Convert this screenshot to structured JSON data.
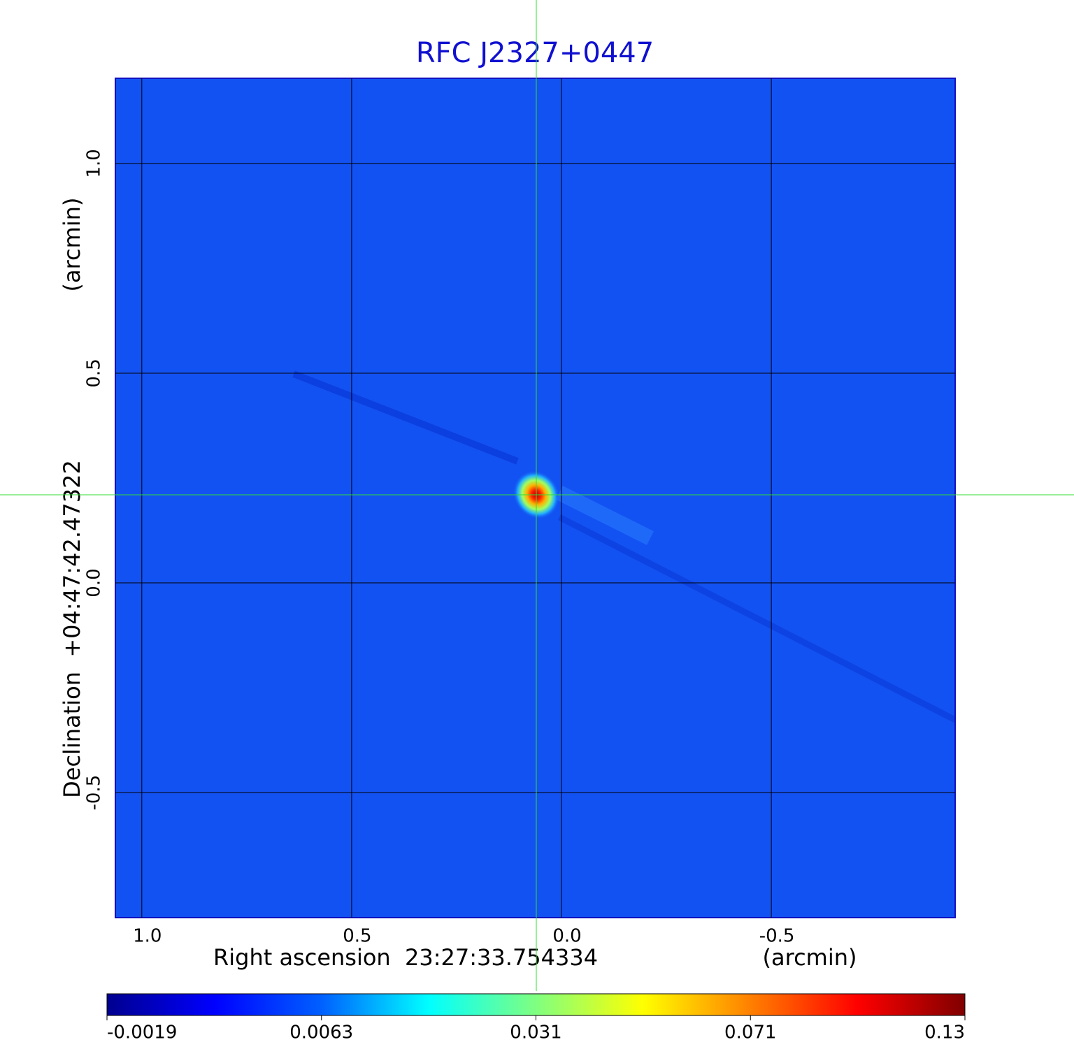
{
  "chart_data": {
    "type": "image",
    "title": "RFC J2327+0447",
    "xlabel": "Right ascension  23:27:33.754334",
    "xunit": "(arcmin)",
    "ylabel": "Declination  +04:47:42.47322",
    "yunit": "(arcmin)",
    "xlim": [
      1.063,
      -0.938
    ],
    "ylim": [
      -0.798,
      1.203
    ],
    "xticks": [
      {
        "value": 1.0,
        "label": "1.0"
      },
      0.5,
      {
        "value": 0.0,
        "label": "0.0"
      },
      -0.5
    ],
    "yticks": [
      -0.5,
      {
        "value": 0.0,
        "label": "0.0"
      },
      0.5,
      {
        "value": 1.0,
        "label": "1.0"
      }
    ],
    "grid": true,
    "marker": {
      "x": 0.06,
      "y": 0.21,
      "color": "#33dd33"
    },
    "colorbar": {
      "ticks": [
        -0.0019,
        0.0063,
        0.031,
        0.071,
        0.13
      ],
      "colors": [
        "#00008f",
        "#0000ff",
        "#0060ff",
        "#00ffff",
        "#80ff80",
        "#ffff00",
        "#ff8000",
        "#ff0000",
        "#800000"
      ]
    }
  }
}
